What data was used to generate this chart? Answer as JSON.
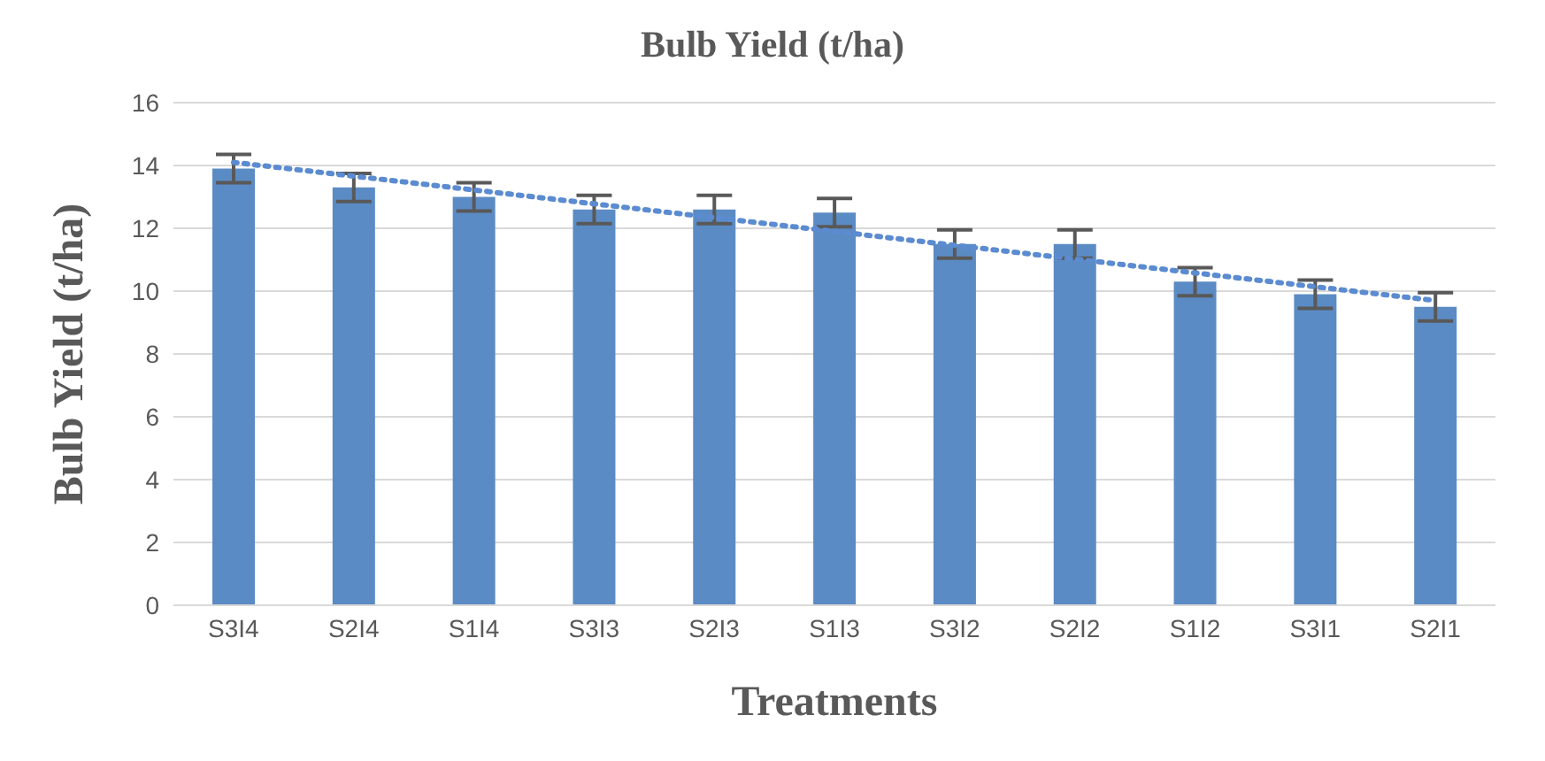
{
  "chart_data": {
    "type": "bar",
    "title": "Bulb Yield (t/ha)",
    "xlabel": "Treatments",
    "ylabel": "Bulb Yield (t/ha)",
    "categories": [
      "S3I4",
      "S2I4",
      "S1I4",
      "S3I3",
      "S2I3",
      "S1I3",
      "S3I2",
      "S2I2",
      "S1I2",
      "S3I1",
      "S2I1"
    ],
    "series": [
      {
        "color": "#5b8bc4",
        "values": [
          13.9,
          13.3,
          13.0,
          12.6,
          12.6,
          12.5,
          11.5,
          11.5,
          10.3,
          9.9,
          9.5
        ],
        "errors": [
          0.45,
          0.45,
          0.45,
          0.45,
          0.45,
          0.45,
          0.45,
          0.45,
          0.45,
          0.45,
          0.45
        ]
      },
      {
        "type": "line",
        "color": "#5b8bd0",
        "line_style": "dotted",
        "marker": "none",
        "x": [
          "S3I4",
          "S2I4",
          "S1I4",
          "S3I3",
          "S2I3",
          "S1I3",
          "S3I2",
          "S2I2",
          "S1I2",
          "S3I1",
          "S2I1"
        ],
        "values": [
          14.1,
          13.66,
          13.22,
          12.78,
          12.34,
          11.9,
          11.46,
          11.02,
          10.58,
          10.14,
          9.7
        ]
      }
    ],
    "ylim": [
      0,
      16
    ],
    "yticks": [
      0,
      2,
      4,
      6,
      8,
      10,
      12,
      14,
      16
    ],
    "grid": "y",
    "legend": false
  }
}
